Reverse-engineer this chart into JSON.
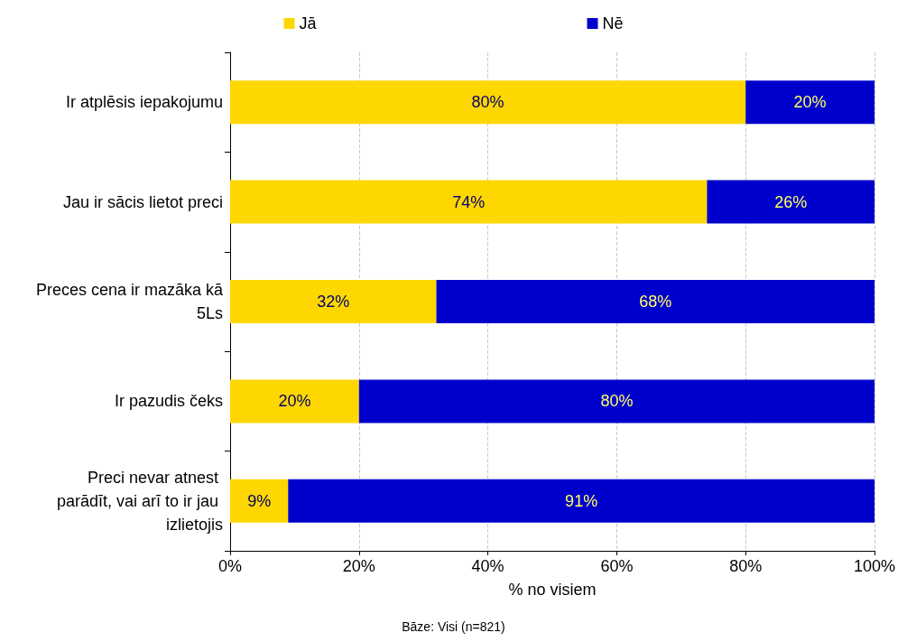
{
  "chart_data": {
    "type": "bar",
    "orientation": "horizontal",
    "stacked": true,
    "categories": [
      "Ir atplēsis iepakojumu",
      "Jau ir sācis lietot preci",
      "Preces cena ir mazāka kā 5Ls",
      "Ir pazudis čeks",
      "Preci nevar atnest parādīt, vai arī to ir jau izlietojis"
    ],
    "series": [
      {
        "name": "Jā",
        "color": "#ffd700",
        "values": [
          80,
          74,
          32,
          20,
          9
        ],
        "value_labels": [
          "80%",
          "74%",
          "32%",
          "20%",
          "9%"
        ]
      },
      {
        "name": "Nē",
        "color": "#0000cc",
        "values": [
          20,
          26,
          68,
          80,
          91
        ],
        "value_labels": [
          "20%",
          "26%",
          "68%",
          "80%",
          "91%"
        ]
      }
    ],
    "xlim": [
      0,
      100
    ],
    "xticks": [
      {
        "value": 0,
        "label": "0%"
      },
      {
        "value": 20,
        "label": "20%"
      },
      {
        "value": 40,
        "label": "40%"
      },
      {
        "value": 60,
        "label": "60%"
      },
      {
        "value": 80,
        "label": "80%"
      },
      {
        "value": 100,
        "label": "100%"
      }
    ],
    "xlabel": "% no visiem",
    "annotations": [
      "Bāze: Visi (n=821)"
    ],
    "grid": "x",
    "legend": "top"
  }
}
